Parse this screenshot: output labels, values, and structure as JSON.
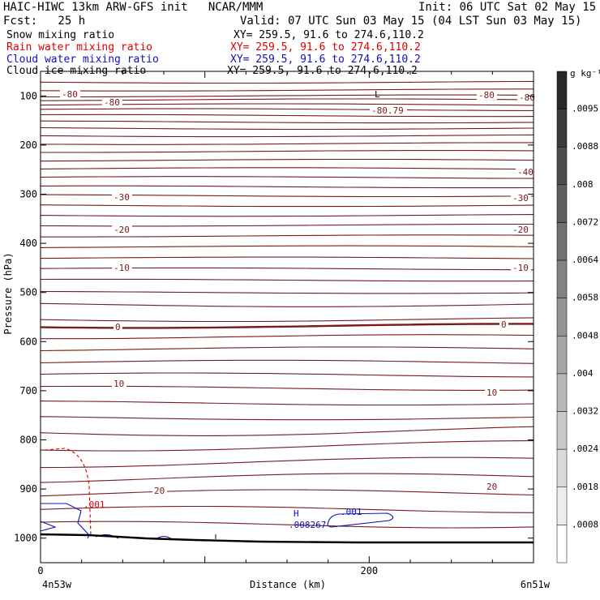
{
  "header": {
    "model_line": "HAIC-HIWC 13km ARW-GFS init   NCAR/MMM",
    "init_line": "Init: 06 UTC Sat 02 May 15",
    "fcst_line": "Fcst:   25 h",
    "valid_line": "Valid: 07 UTC Sun 03 May 15 (04 LST Sun 03 May 15)"
  },
  "fields": [
    {
      "name": "Snow mixing ratio",
      "xy": "XY= 259.5, 91.6 to 274.6,110.2",
      "color": "#000000"
    },
    {
      "name": "Rain water mixing ratio",
      "xy": "XY= 259.5, 91.6 to 274.6,110.2",
      "color": "#e00000"
    },
    {
      "name": "Cloud water mixing ratio",
      "xy": "XY= 259.5, 91.6 to 274.6,110.2",
      "color": "#1010c0"
    },
    {
      "name": "Cloud ice mixing ratio",
      "xy": "XY= 259.5, 91.6 to 274.6,110.2",
      "color": "#000000"
    }
  ],
  "chart_data": {
    "type": "cross-section contour",
    "xlabel": "Distance (km)",
    "ylabel": "Pressure (hPa)",
    "xlim": [
      0,
      300
    ],
    "ylim": [
      1050,
      50
    ],
    "x_ticks": [
      0,
      200
    ],
    "y_ticks": [
      100,
      200,
      300,
      400,
      500,
      600,
      700,
      800,
      900,
      1000
    ],
    "x_endpoints": {
      "left": "4n53w",
      "right": "6n51w"
    },
    "temperature_contours": {
      "color": "#7a1a1a",
      "labels": [
        "-80",
        "-80",
        "-80.79",
        "-80",
        "-80",
        "-40",
        "-30",
        "-30",
        "-20",
        "-20",
        "-10",
        "-10",
        "0",
        "0",
        "10",
        "10",
        "20",
        "20"
      ],
      "low_marker": "L",
      "levels_hpa": [
        72,
        88,
        100,
        108,
        118,
        128,
        140,
        153,
        166,
        181,
        197,
        213,
        231,
        248,
        266,
        285,
        303,
        323,
        343,
        363,
        385,
        407,
        430,
        452,
        475,
        500,
        525,
        555,
        568,
        590,
        615,
        642,
        668,
        695,
        725,
        755,
        785,
        815,
        848,
        880,
        912,
        945,
        975
      ]
    },
    "rain_water": {
      "contour_label": ".001",
      "color": "#e00000"
    },
    "cloud_water": {
      "contour_label": ".001",
      "max_label": ".008267",
      "max_marker": "H",
      "color": "#1010c0"
    },
    "colorbar": {
      "unit": "g kg⁻¹",
      "labels": [
        ".0095",
        ".0088",
        ".008",
        ".0072",
        ".0064",
        ".0058",
        ".0048",
        ".004",
        ".0032",
        ".0024",
        ".0018",
        ".0008"
      ]
    }
  }
}
